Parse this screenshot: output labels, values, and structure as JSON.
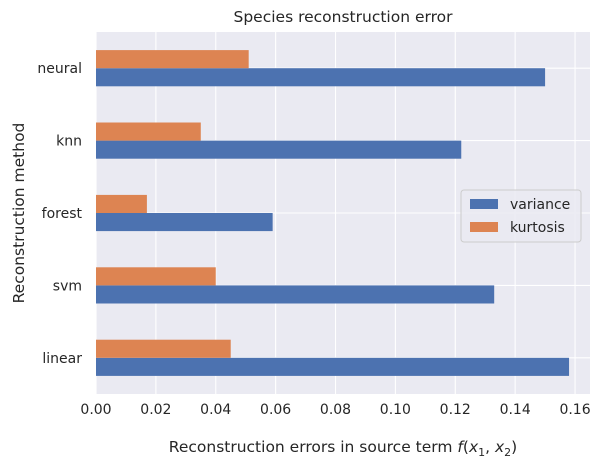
{
  "chart_data": {
    "type": "bar",
    "orientation": "horizontal",
    "title": "Species reconstruction error",
    "xlabel_prefix": "Reconstruction errors in source term ",
    "xlabel_math": {
      "f": "f",
      "open": "(",
      "x": "x",
      "sub1": "1",
      "sep": ", ",
      "sub2": "2",
      "close": ")"
    },
    "ylabel": "Reconstruction method",
    "categories": [
      "linear",
      "svm",
      "forest",
      "knn",
      "neural"
    ],
    "series": [
      {
        "name": "variance",
        "color": "#4c72b0",
        "values": [
          0.158,
          0.133,
          0.059,
          0.122,
          0.15
        ]
      },
      {
        "name": "kurtosis",
        "color": "#dd8452",
        "values": [
          0.045,
          0.04,
          0.017,
          0.035,
          0.051
        ]
      }
    ],
    "xlim": [
      0,
      0.165
    ],
    "xticks": [
      0.0,
      0.02,
      0.04,
      0.06,
      0.08,
      0.1,
      0.12,
      0.14,
      0.16
    ],
    "xtick_labels": [
      "0.00",
      "0.02",
      "0.04",
      "0.06",
      "0.08",
      "0.10",
      "0.12",
      "0.14",
      "0.16"
    ],
    "grid": true,
    "legend_position": "center-right",
    "background_color": "#eaeaf2",
    "grid_color": "#ffffff"
  }
}
